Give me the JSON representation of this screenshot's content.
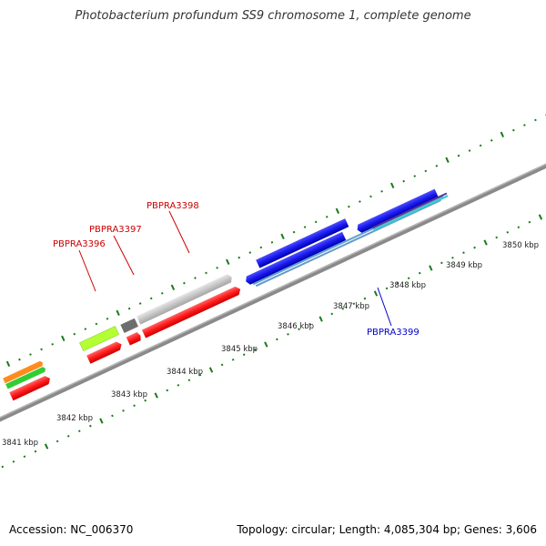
{
  "header": {
    "title": "Photobacterium profundum SS9 chromosome 1, complete genome"
  },
  "footer": {
    "accession": "Accession: NC_006370",
    "summary": "Topology: circular; Length: 4,085,304 bp; Genes: 3,606"
  },
  "scale": {
    "unit": "kbp",
    "tick_labels": [
      "3841 kbp",
      "3842 kbp",
      "3843 kbp",
      "3844 kbp",
      "3845 kbp",
      "3846 kbp",
      "3847 kbp",
      "3848 kbp",
      "3849 kbp",
      "3850 kbp"
    ]
  },
  "gene_labels": {
    "pbpra3396": "PBPRA3396",
    "pbpra3397": "PBPRA3397",
    "pbpra3398": "PBPRA3398",
    "pbpra3399": "PBPRA3399"
  },
  "colors": {
    "forward_cds": "#ff1a1a",
    "reverse_cds": "#1a1aee",
    "backbone": "#888888",
    "tick": "#1a7a1a",
    "label_forward": "#cc0000",
    "label_reverse": "#0000cc",
    "orange": "#ff8c1a",
    "green": "#33cc33",
    "lime": "#b3ff33",
    "gray": "#c8c8c8",
    "dark_gray": "#707070",
    "teal": "#33cccc",
    "light_blue": "#6699cc",
    "purple": "#553399"
  }
}
